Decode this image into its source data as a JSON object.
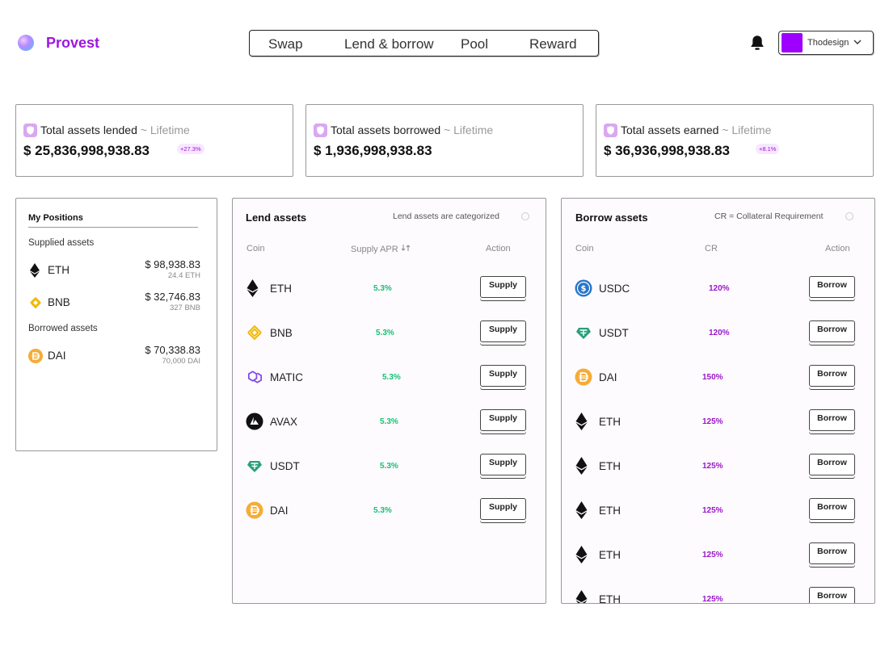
{
  "header": {
    "brand": "Provest",
    "nav": [
      "Swap",
      "Lend & borrow",
      "Pool",
      "Reward"
    ],
    "user": {
      "name": "Thodesign",
      "avatar_color": "#9d00ff"
    }
  },
  "stats": [
    {
      "label": "Total assets lended",
      "suffix": "~ Lifetime",
      "value": "$ 25,836,998,938.83",
      "badge": "+27.3%"
    },
    {
      "label": "Total assets borrowed",
      "suffix": "~ Lifetime",
      "value": "$ 1,936,998,938.83",
      "badge": ""
    },
    {
      "label": "Total assets earned",
      "suffix": "~ Lifetime",
      "value": "$ 36,936,998,938.83",
      "badge": "+8.1%"
    }
  ],
  "positions": {
    "title": "My Positions",
    "supplied_label": "Supplied assets",
    "supplied": [
      {
        "icon": "eth-icon",
        "coin": "ETH",
        "amount": "$ 98,938.83",
        "sub": "24.4 ETH"
      },
      {
        "icon": "bnb-icon",
        "coin": "BNB",
        "amount": "$ 32,746.83",
        "sub": "327 BNB"
      }
    ],
    "borrowed_label": "Borrowed assets",
    "borrowed": [
      {
        "icon": "dai-icon",
        "coin": "DAI",
        "amount": "$ 70,338.83",
        "sub": "70,000 DAI"
      }
    ]
  },
  "lend": {
    "title": "Lend assets",
    "note": "Lend assets are categorized",
    "columns": {
      "coin": "Coin",
      "apr": "Supply APR",
      "action": "Action"
    },
    "rows": [
      {
        "icon": "eth-icon",
        "coin": "ETH",
        "apr": "5.3%",
        "action": "Supply"
      },
      {
        "icon": "bnb-icon",
        "coin": "BNB",
        "apr": "5.3%",
        "action": "Supply"
      },
      {
        "icon": "matic-icon",
        "coin": "MATIC",
        "apr": "5.3%",
        "action": "Supply"
      },
      {
        "icon": "avax-icon",
        "coin": "AVAX",
        "apr": "5.3%",
        "action": "Supply"
      },
      {
        "icon": "usdt-icon",
        "coin": "USDT",
        "apr": "5.3%",
        "action": "Supply"
      },
      {
        "icon": "dai-icon",
        "coin": "DAI",
        "apr": "5.3%",
        "action": "Supply"
      }
    ]
  },
  "borrow": {
    "title": "Borrow assets",
    "note": "CR = Collateral Requirement",
    "columns": {
      "coin": "Coin",
      "cr": "CR",
      "action": "Action"
    },
    "rows": [
      {
        "icon": "usdc-icon",
        "coin": "USDC",
        "cr": "120%",
        "action": "Borrow"
      },
      {
        "icon": "usdt-icon",
        "coin": "USDT",
        "cr": "120%",
        "action": "Borrow"
      },
      {
        "icon": "dai-icon",
        "coin": "DAI",
        "cr": "150%",
        "action": "Borrow"
      },
      {
        "icon": "eth-icon",
        "coin": "ETH",
        "cr": "125%",
        "action": "Borrow"
      },
      {
        "icon": "eth-icon",
        "coin": "ETH",
        "cr": "125%",
        "action": "Borrow"
      },
      {
        "icon": "eth-icon",
        "coin": "ETH",
        "cr": "125%",
        "action": "Borrow"
      },
      {
        "icon": "eth-icon",
        "coin": "ETH",
        "cr": "125%",
        "action": "Borrow"
      },
      {
        "icon": "eth-icon",
        "coin": "ETH",
        "cr": "125%",
        "action": "Borrow"
      }
    ]
  },
  "colors": {
    "brand": "#9d17e0",
    "apr_green": "#16c172",
    "cr_purple": "#9b16c9"
  }
}
